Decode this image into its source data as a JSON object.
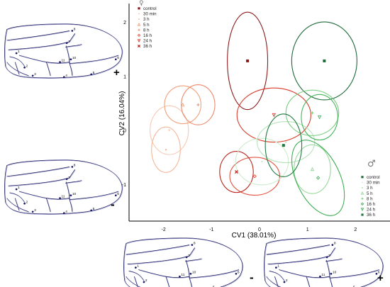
{
  "chart_data": {
    "type": "scatter",
    "xlabel": "CV1 (38.01%)",
    "ylabel": "CV2 (16.04%)",
    "xlim": [
      -2.6,
      2.6
    ],
    "ylim": [
      -1.6,
      2.3
    ],
    "xticks": [
      -2,
      -1,
      0,
      1,
      2
    ],
    "yticks": [
      -1,
      0,
      1,
      2
    ],
    "legends": [
      {
        "symbol": "♀",
        "position": "top-left",
        "entries": [
          "control",
          "30 min",
          "3 h",
          "5 h",
          "8 h",
          "16 h",
          "24 h",
          "36 h"
        ]
      },
      {
        "symbol": "♂",
        "position": "bottom-right",
        "entries": [
          "control",
          "30 min",
          "3 h",
          "5 h",
          "8 h",
          "16 h",
          "24 h",
          "36 h"
        ]
      }
    ],
    "series": [
      {
        "sex": "female",
        "time": "control",
        "color": "#8b1a1a",
        "marker": "square",
        "x": -0.25,
        "y": 1.28,
        "rx": 0.42,
        "ry": 0.9,
        "rot": 0
      },
      {
        "sex": "female",
        "time": "30 min",
        "color": "#f6c9b2",
        "marker": "dot",
        "x": -1.88,
        "y": 0.0,
        "rx": 0.4,
        "ry": 0.45,
        "rot": 0
      },
      {
        "sex": "female",
        "time": "3 h",
        "color": "#f5b89c",
        "marker": "dot",
        "x": -1.95,
        "y": -0.36,
        "rx": 0.3,
        "ry": 0.42,
        "rot": 0
      },
      {
        "sex": "female",
        "time": "5 h",
        "color": "#f0a07a",
        "marker": "triangle",
        "x": -1.6,
        "y": 0.47,
        "rx": 0.38,
        "ry": 0.35,
        "rot": 0
      },
      {
        "sex": "female",
        "time": "8 h",
        "color": "#ec8a6a",
        "marker": "plus",
        "x": -1.28,
        "y": 0.47,
        "rx": 0.35,
        "ry": 0.37,
        "rot": 0
      },
      {
        "sex": "female",
        "time": "16 h",
        "color": "#e2523f",
        "marker": "diamond",
        "x": -0.1,
        "y": -0.85,
        "rx": 0.52,
        "ry": 0.35,
        "rot": 0
      },
      {
        "sex": "female",
        "time": "24 h",
        "color": "#d83c2c",
        "marker": "triangle-down",
        "x": 0.3,
        "y": 0.28,
        "rx": 0.77,
        "ry": 0.5,
        "rot": 0
      },
      {
        "sex": "female",
        "time": "36 h",
        "color": "#b8261e",
        "marker": "cross",
        "x": -0.48,
        "y": -0.77,
        "rx": 0.35,
        "ry": 0.38,
        "rot": 0
      },
      {
        "sex": "male",
        "time": "control",
        "color": "#1e6b3a",
        "marker": "square",
        "x": 1.35,
        "y": 1.28,
        "rx": 0.68,
        "ry": 0.72,
        "rot": 0
      },
      {
        "sex": "male",
        "time": "30 min",
        "color": "#cdeccf",
        "marker": "dot",
        "x": 0.05,
        "y": -0.58,
        "rx": 0.55,
        "ry": 0.43,
        "rot": 0
      },
      {
        "sex": "male",
        "time": "3 h",
        "color": "#b4e3b8",
        "marker": "dot",
        "x": 0.55,
        "y": -0.22,
        "rx": 0.6,
        "ry": 0.38,
        "rot": 0
      },
      {
        "sex": "male",
        "time": "5 h",
        "color": "#95d89a",
        "marker": "triangle",
        "x": 1.1,
        "y": -0.72,
        "rx": 0.38,
        "ry": 0.45,
        "rot": 0
      },
      {
        "sex": "male",
        "time": "8 h",
        "color": "#79cc7f",
        "marker": "plus",
        "x": 1.1,
        "y": 0.32,
        "rx": 0.55,
        "ry": 0.42,
        "rot": 0
      },
      {
        "sex": "male",
        "time": "16 h",
        "color": "#3fae55",
        "marker": "diamond",
        "x": 1.22,
        "y": -0.88,
        "rx": 0.45,
        "ry": 0.75,
        "rot": -0.45
      },
      {
        "sex": "male",
        "time": "24 h",
        "color": "#46b35a",
        "marker": "triangle-down",
        "x": 1.25,
        "y": 0.24,
        "rx": 0.38,
        "ry": 0.42,
        "rot": 0
      },
      {
        "sex": "male",
        "time": "36 h",
        "color": "#1f7a3f",
        "marker": "square",
        "x": 0.5,
        "y": -0.28,
        "rx": 0.38,
        "ry": 0.58,
        "rot": 0
      }
    ]
  },
  "panels": {
    "top_left_sign": "+",
    "mid_left_sign": "-",
    "bottom_left_sign": "-",
    "bottom_right_sign": "+"
  },
  "landmarks": [
    "1",
    "2",
    "3",
    "4",
    "5",
    "6",
    "7",
    "8",
    "10",
    "11"
  ]
}
